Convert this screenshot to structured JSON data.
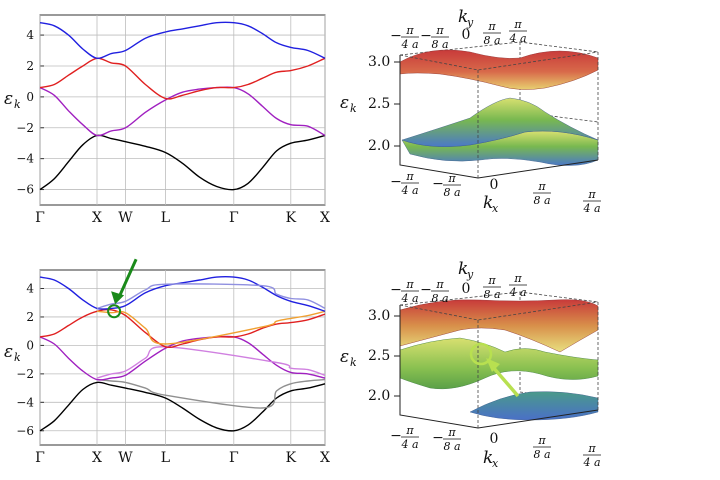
{
  "chart_data": [
    {
      "type": "line",
      "panel": "top-left band structure",
      "ylabel": "ε",
      "ylabel_sub": "k",
      "ylim": [
        -7,
        5.3
      ],
      "yticks": [
        -6,
        -4,
        -2,
        0,
        2,
        4
      ],
      "x_points": [
        "Γ",
        "X",
        "W",
        "L",
        "Γ",
        "K",
        "X"
      ],
      "x_positions": [
        0,
        1,
        1.5,
        2.2,
        3.4,
        4.4,
        5.0
      ],
      "grid": true,
      "colors": {
        "band1": "#000000",
        "band2": "#a020c0",
        "band3": "#e02020",
        "band4": "#2020e0"
      },
      "series": [
        {
          "color_key": "band1",
          "x": [
            0,
            0.25,
            0.5,
            0.75,
            1.0,
            1.25,
            1.5,
            1.85,
            2.2,
            2.5,
            2.8,
            3.1,
            3.4,
            3.65,
            3.9,
            4.15,
            4.4,
            4.7,
            5.0
          ],
          "values": [
            -6.0,
            -5.3,
            -4.2,
            -3.1,
            -2.5,
            -2.7,
            -2.9,
            -3.2,
            -3.6,
            -4.3,
            -5.2,
            -5.8,
            -6.0,
            -5.6,
            -4.6,
            -3.5,
            -3.0,
            -2.8,
            -2.5
          ]
        },
        {
          "color_key": "band2",
          "x": [
            0,
            0.25,
            0.5,
            0.75,
            1.0,
            1.25,
            1.5,
            1.85,
            2.2,
            2.5,
            2.8,
            3.1,
            3.4,
            3.65,
            3.9,
            4.15,
            4.4,
            4.7,
            5.0
          ],
          "values": [
            0.6,
            0.1,
            -0.9,
            -1.8,
            -2.5,
            -2.2,
            -2.0,
            -1.0,
            -0.2,
            0.3,
            0.5,
            0.6,
            0.6,
            0.2,
            -0.6,
            -1.4,
            -1.8,
            -1.9,
            -2.5
          ]
        },
        {
          "color_key": "band3",
          "x": [
            0,
            0.25,
            0.5,
            0.75,
            1.0,
            1.25,
            1.5,
            1.85,
            2.2,
            2.5,
            2.8,
            3.1,
            3.4,
            3.65,
            3.9,
            4.15,
            4.4,
            4.7,
            5.0
          ],
          "values": [
            0.6,
            0.8,
            1.4,
            2.0,
            2.5,
            2.2,
            2.0,
            0.8,
            -0.1,
            0.1,
            0.4,
            0.6,
            0.6,
            0.8,
            1.2,
            1.6,
            1.7,
            2.0,
            2.5
          ]
        },
        {
          "color_key": "band4",
          "x": [
            0,
            0.25,
            0.5,
            0.75,
            1.0,
            1.25,
            1.5,
            1.85,
            2.2,
            2.5,
            2.8,
            3.1,
            3.4,
            3.65,
            3.9,
            4.15,
            4.4,
            4.7,
            5.0
          ],
          "values": [
            4.8,
            4.6,
            4.0,
            3.1,
            2.5,
            2.8,
            3.0,
            3.8,
            4.2,
            4.4,
            4.6,
            4.8,
            4.8,
            4.6,
            4.1,
            3.5,
            3.2,
            3.0,
            2.5
          ]
        }
      ]
    },
    {
      "type": "line",
      "panel": "bottom-left band structure with split bands",
      "ylabel": "ε",
      "ylabel_sub": "k",
      "ylim": [
        -7,
        5.3
      ],
      "yticks": [
        -6,
        -4,
        -2,
        0,
        2,
        4
      ],
      "x_points": [
        "Γ",
        "X",
        "W",
        "L",
        "Γ",
        "K",
        "X"
      ],
      "x_positions": [
        0,
        1,
        1.5,
        2.2,
        3.4,
        4.4,
        5.0
      ],
      "grid": true,
      "annotation": "green arrow and circle at crossing near X–W",
      "colors": {
        "band1": "#000000",
        "band1b": "#909090",
        "band2": "#a020c0",
        "band2b": "#d080e0",
        "band3": "#e02020",
        "band3b": "#f0a030",
        "band4": "#2020e0",
        "band4b": "#9090e0",
        "marker": "#1a8a1a"
      },
      "series": [
        {
          "color_key": "band1",
          "x": [
            0,
            0.25,
            0.5,
            0.75,
            1.0,
            1.25,
            1.5,
            1.85,
            2.2,
            2.5,
            2.8,
            3.1,
            3.4,
            3.65,
            3.9,
            4.15,
            4.4,
            4.7,
            5.0
          ],
          "values": [
            -6.0,
            -5.3,
            -4.2,
            -3.1,
            -2.6,
            -2.8,
            -3.0,
            -3.3,
            -3.7,
            -4.4,
            -5.2,
            -5.8,
            -6.0,
            -5.6,
            -4.7,
            -3.7,
            -3.2,
            -3.0,
            -2.7
          ]
        },
        {
          "color_key": "band1b",
          "x": [
            1.0,
            1.25,
            1.5,
            1.85,
            2.2,
            3.9,
            4.15,
            4.4,
            4.7,
            5.0
          ],
          "values": [
            -2.4,
            -2.5,
            -2.6,
            -3.0,
            -3.5,
            -4.4,
            -3.2,
            -2.7,
            -2.5,
            -2.4
          ]
        },
        {
          "color_key": "band2",
          "x": [
            0,
            0.25,
            0.5,
            0.75,
            1.0,
            1.25,
            1.5,
            1.85,
            2.2,
            2.5,
            2.8,
            3.1,
            3.4,
            3.65,
            3.9,
            4.15,
            4.4,
            4.7,
            5.0
          ],
          "values": [
            0.6,
            0.1,
            -0.9,
            -1.8,
            -2.4,
            -2.3,
            -2.1,
            -1.1,
            -0.2,
            0.3,
            0.5,
            0.6,
            0.6,
            0.2,
            -0.6,
            -1.4,
            -1.9,
            -2.0,
            -2.3
          ]
        },
        {
          "color_key": "band2b",
          "x": [
            1.0,
            1.25,
            1.5,
            1.85,
            2.2,
            4.15,
            4.4,
            4.7,
            5.0
          ],
          "values": [
            -2.3,
            -2.0,
            -1.8,
            -0.9,
            -0.1,
            -1.2,
            -1.6,
            -1.7,
            -2.1
          ]
        },
        {
          "color_key": "band3",
          "x": [
            0,
            0.25,
            0.5,
            0.75,
            1.0,
            1.25,
            1.5,
            1.85,
            2.2,
            2.5,
            2.8,
            3.1,
            3.4,
            3.65,
            3.9,
            4.15,
            4.4,
            4.7,
            5.0
          ],
          "values": [
            0.6,
            0.8,
            1.4,
            2.0,
            2.4,
            2.5,
            2.1,
            0.9,
            -0.1,
            0.1,
            0.4,
            0.6,
            0.6,
            0.8,
            1.2,
            1.5,
            1.6,
            1.8,
            2.2
          ]
        },
        {
          "color_key": "band3b",
          "x": [
            1.0,
            1.25,
            1.5,
            1.85,
            2.2,
            3.9,
            4.15,
            4.4,
            4.7,
            5.0
          ],
          "values": [
            2.4,
            2.3,
            2.3,
            1.2,
            0.1,
            1.3,
            1.7,
            1.9,
            2.1,
            2.4
          ]
        },
        {
          "color_key": "band4",
          "x": [
            0,
            0.25,
            0.5,
            0.75,
            1.0,
            1.25,
            1.5,
            1.85,
            2.2,
            2.5,
            2.8,
            3.1,
            3.4,
            3.65,
            3.9,
            4.15,
            4.4,
            4.7,
            5.0
          ],
          "values": [
            4.8,
            4.6,
            4.0,
            3.2,
            2.6,
            2.6,
            2.8,
            3.7,
            4.2,
            4.4,
            4.6,
            4.8,
            4.8,
            4.6,
            4.1,
            3.5,
            3.1,
            2.8,
            2.4
          ]
        },
        {
          "color_key": "band4b",
          "x": [
            1.0,
            1.25,
            1.5,
            1.85,
            2.2,
            3.9,
            4.15,
            4.4,
            4.7,
            5.0
          ],
          "values": [
            2.6,
            2.9,
            3.1,
            3.9,
            4.3,
            4.2,
            3.6,
            3.3,
            3.2,
            2.6
          ]
        }
      ],
      "marker": {
        "x": 1.3,
        "y": 2.4
      }
    },
    {
      "type": "surface",
      "panel": "top-right 3D band surface",
      "ylabel": "ε",
      "ylabel_sub": "k",
      "zlim": [
        1.8,
        3.1
      ],
      "zticks": [
        "2.0",
        "2.5",
        "3.0"
      ],
      "kx_label": "k",
      "kx_sub": "x",
      "ky_label": "k",
      "ky_sub": "y",
      "kx_ticks": [
        {
          "sign": "−",
          "num": "π",
          "den": "4 a"
        },
        {
          "sign": "−",
          "num": "π",
          "den": "8 a"
        },
        {
          "sign": "",
          "num": "0",
          "den": ""
        },
        {
          "sign": "",
          "num": "π",
          "den": "8 a"
        },
        {
          "sign": "",
          "num": "π",
          "den": "4 a"
        }
      ],
      "ky_ticks": [
        {
          "sign": "−",
          "num": "π",
          "den": "4 a"
        },
        {
          "sign": "−",
          "num": "π",
          "den": "8 a"
        },
        {
          "sign": "",
          "num": "0",
          "den": ""
        },
        {
          "sign": "",
          "num": "π",
          "den": "8 a"
        },
        {
          "sign": "",
          "num": "π",
          "den": "4 a"
        }
      ],
      "surfaces": [
        "upper band (red/yellow)",
        "lower band (green/blue)"
      ]
    },
    {
      "type": "surface",
      "panel": "bottom-right 3D band surface",
      "ylabel": "ε",
      "ylabel_sub": "k",
      "zlim": [
        1.8,
        3.1
      ],
      "zticks": [
        "2.0",
        "2.5",
        "3.0"
      ],
      "kx_label": "k",
      "kx_sub": "x",
      "ky_label": "k",
      "ky_sub": "y",
      "kx_ticks": [
        {
          "sign": "−",
          "num": "π",
          "den": "4 a"
        },
        {
          "sign": "−",
          "num": "π",
          "den": "8 a"
        },
        {
          "sign": "",
          "num": "0",
          "den": ""
        },
        {
          "sign": "",
          "num": "π",
          "den": "8 a"
        },
        {
          "sign": "",
          "num": "π",
          "den": "4 a"
        }
      ],
      "ky_ticks": [
        {
          "sign": "−",
          "num": "π",
          "den": "4 a"
        },
        {
          "sign": "−",
          "num": "π",
          "den": "8 a"
        },
        {
          "sign": "",
          "num": "0",
          "den": ""
        },
        {
          "sign": "",
          "num": "π",
          "den": "8 a"
        },
        {
          "sign": "",
          "num": "π",
          "den": "4 a"
        }
      ],
      "annotation": "light-green arrow and circle marking band touching point",
      "marker_color": "#b8e050"
    }
  ]
}
